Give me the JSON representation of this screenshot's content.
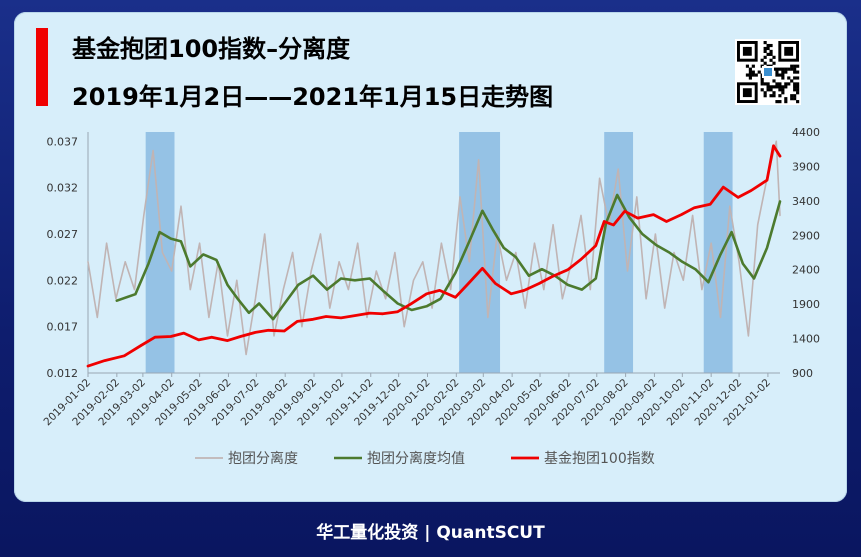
{
  "header": {
    "title_line1": "基金抱团100指数–分离度",
    "title_line2": "2019年1月2日——2021年1月15日走势图"
  },
  "footer": {
    "text": "华工量化投资 | QuantSCUT"
  },
  "colors": {
    "accent_red": "#f00000",
    "separation": "#c0b4b4",
    "separation_mean": "#4c7a2e",
    "index": "#f00000",
    "shade": "#7fb3de"
  },
  "qr": {
    "icon": "qr-code-icon"
  },
  "chart_data": {
    "type": "line",
    "title": "",
    "x_ticks": [
      "2019-01-02",
      "2019-02-02",
      "2019-03-02",
      "2019-04-02",
      "2019-05-02",
      "2019-06-02",
      "2019-07-02",
      "2019-08-02",
      "2019-09-02",
      "2019-10-02",
      "2019-11-02",
      "2019-12-02",
      "2020-01-02",
      "2020-02-02",
      "2020-03-02",
      "2020-04-02",
      "2020-05-02",
      "2020-06-02",
      "2020-07-02",
      "2020-08-02",
      "2020-09-02",
      "2020-10-02",
      "2020-11-02",
      "2020-12-02",
      "2021-01-02"
    ],
    "y_left_ticks": [
      "0.012",
      "0.017",
      "0.022",
      "0.027",
      "0.032",
      "0.037"
    ],
    "y_left_range": [
      0.012,
      0.038
    ],
    "y_right_ticks": [
      "900",
      "1400",
      "1900",
      "2400",
      "2900",
      "3400",
      "3900",
      "4400"
    ],
    "y_right_range": [
      900,
      4400
    ],
    "x_range": [
      "2019-01-02",
      "2021-01-15"
    ],
    "shaded_periods": [
      [
        "2019-03-05",
        "2019-04-05"
      ],
      [
        "2020-02-05",
        "2020-03-20"
      ],
      [
        "2020-07-10",
        "2020-08-10"
      ],
      [
        "2020-10-25",
        "2020-11-25"
      ]
    ],
    "legend_position": "bottom",
    "series": [
      {
        "name": "抱团分离度",
        "axis": "left",
        "x": [
          "2019-01-02",
          "2019-01-12",
          "2019-01-22",
          "2019-02-01",
          "2019-02-11",
          "2019-02-21",
          "2019-03-03",
          "2019-03-13",
          "2019-03-23",
          "2019-04-02",
          "2019-04-12",
          "2019-04-22",
          "2019-05-02",
          "2019-05-12",
          "2019-05-22",
          "2019-06-01",
          "2019-06-11",
          "2019-06-21",
          "2019-07-01",
          "2019-07-11",
          "2019-07-21",
          "2019-07-31",
          "2019-08-10",
          "2019-08-20",
          "2019-08-30",
          "2019-09-09",
          "2019-09-19",
          "2019-09-29",
          "2019-10-09",
          "2019-10-19",
          "2019-10-29",
          "2019-11-08",
          "2019-11-18",
          "2019-11-28",
          "2019-12-08",
          "2019-12-18",
          "2019-12-28",
          "2020-01-07",
          "2020-01-17",
          "2020-01-27",
          "2020-02-06",
          "2020-02-16",
          "2020-02-26",
          "2020-03-07",
          "2020-03-17",
          "2020-03-27",
          "2020-04-06",
          "2020-04-16",
          "2020-04-26",
          "2020-05-06",
          "2020-05-16",
          "2020-05-26",
          "2020-06-05",
          "2020-06-15",
          "2020-06-25",
          "2020-07-05",
          "2020-07-15",
          "2020-07-25",
          "2020-08-04",
          "2020-08-14",
          "2020-08-24",
          "2020-09-03",
          "2020-09-13",
          "2020-09-23",
          "2020-10-03",
          "2020-10-13",
          "2020-10-23",
          "2020-11-02",
          "2020-11-12",
          "2020-11-22",
          "2020-12-02",
          "2020-12-12",
          "2020-12-22",
          "2021-01-01",
          "2021-01-11",
          "2021-01-15"
        ],
        "values": [
          0.024,
          0.018,
          0.026,
          0.02,
          0.024,
          0.021,
          0.029,
          0.036,
          0.025,
          0.023,
          0.03,
          0.021,
          0.026,
          0.018,
          0.024,
          0.016,
          0.022,
          0.014,
          0.02,
          0.027,
          0.016,
          0.021,
          0.025,
          0.017,
          0.023,
          0.027,
          0.019,
          0.024,
          0.021,
          0.026,
          0.018,
          0.023,
          0.02,
          0.025,
          0.017,
          0.022,
          0.024,
          0.019,
          0.026,
          0.021,
          0.031,
          0.024,
          0.035,
          0.018,
          0.027,
          0.022,
          0.025,
          0.019,
          0.026,
          0.021,
          0.028,
          0.02,
          0.024,
          0.029,
          0.021,
          0.033,
          0.028,
          0.034,
          0.023,
          0.031,
          0.02,
          0.027,
          0.019,
          0.025,
          0.022,
          0.029,
          0.021,
          0.026,
          0.018,
          0.03,
          0.024,
          0.016,
          0.028,
          0.033,
          0.037,
          0.029
        ]
      },
      {
        "name": "抱团分离度均值",
        "axis": "left",
        "x": [
          "2019-02-02",
          "2019-02-22",
          "2019-03-08",
          "2019-03-20",
          "2019-04-01",
          "2019-04-12",
          "2019-04-22",
          "2019-05-06",
          "2019-05-20",
          "2019-06-01",
          "2019-06-12",
          "2019-06-24",
          "2019-07-05",
          "2019-07-20",
          "2019-08-02",
          "2019-08-16",
          "2019-09-01",
          "2019-09-16",
          "2019-10-01",
          "2019-10-16",
          "2019-11-01",
          "2019-11-16",
          "2019-12-01",
          "2019-12-16",
          "2020-01-01",
          "2020-01-16",
          "2020-02-01",
          "2020-02-16",
          "2020-03-01",
          "2020-03-12",
          "2020-03-24",
          "2020-04-06",
          "2020-04-20",
          "2020-05-04",
          "2020-05-18",
          "2020-06-01",
          "2020-06-16",
          "2020-07-01",
          "2020-07-12",
          "2020-07-24",
          "2020-08-06",
          "2020-08-20",
          "2020-09-04",
          "2020-09-18",
          "2020-10-02",
          "2020-10-16",
          "2020-10-30",
          "2020-11-12",
          "2020-11-24",
          "2020-12-06",
          "2020-12-18",
          "2021-01-01",
          "2021-01-15"
        ],
        "values": [
          0.0198,
          0.0205,
          0.0238,
          0.0272,
          0.0265,
          0.0262,
          0.0235,
          0.0248,
          0.0242,
          0.0215,
          0.02,
          0.0185,
          0.0195,
          0.0178,
          0.0196,
          0.0215,
          0.0225,
          0.021,
          0.0222,
          0.022,
          0.0222,
          0.0208,
          0.0195,
          0.0188,
          0.0192,
          0.02,
          0.0228,
          0.0262,
          0.0295,
          0.0275,
          0.0255,
          0.0245,
          0.0225,
          0.0232,
          0.0225,
          0.0215,
          0.021,
          0.0222,
          0.0282,
          0.0312,
          0.0288,
          0.027,
          0.0258,
          0.025,
          0.024,
          0.0232,
          0.0218,
          0.0248,
          0.0272,
          0.0238,
          0.0222,
          0.0255,
          0.0305
        ]
      },
      {
        "name": "基金抱团100指数",
        "axis": "right",
        "x": [
          "2019-01-02",
          "2019-01-20",
          "2019-02-10",
          "2019-02-28",
          "2019-03-15",
          "2019-04-01",
          "2019-04-15",
          "2019-05-01",
          "2019-05-15",
          "2019-06-01",
          "2019-06-15",
          "2019-07-01",
          "2019-07-15",
          "2019-08-01",
          "2019-08-15",
          "2019-09-01",
          "2019-09-15",
          "2019-10-01",
          "2019-10-15",
          "2019-11-01",
          "2019-11-15",
          "2019-12-01",
          "2019-12-15",
          "2020-01-01",
          "2020-01-15",
          "2020-02-01",
          "2020-02-15",
          "2020-03-01",
          "2020-03-15",
          "2020-04-01",
          "2020-04-15",
          "2020-05-01",
          "2020-05-15",
          "2020-06-01",
          "2020-06-15",
          "2020-07-01",
          "2020-07-10",
          "2020-07-20",
          "2020-08-01",
          "2020-08-15",
          "2020-09-01",
          "2020-09-15",
          "2020-10-01",
          "2020-10-15",
          "2020-11-01",
          "2020-11-15",
          "2020-12-01",
          "2020-12-15",
          "2021-01-01",
          "2021-01-08",
          "2021-01-15"
        ],
        "values": [
          1000,
          1080,
          1150,
          1300,
          1420,
          1430,
          1480,
          1380,
          1420,
          1370,
          1430,
          1490,
          1520,
          1510,
          1650,
          1680,
          1720,
          1700,
          1730,
          1770,
          1760,
          1790,
          1900,
          2050,
          2100,
          2000,
          2200,
          2420,
          2200,
          2050,
          2100,
          2200,
          2300,
          2400,
          2550,
          2750,
          3100,
          3050,
          3250,
          3150,
          3200,
          3100,
          3200,
          3300,
          3350,
          3600,
          3450,
          3550,
          3700,
          4200,
          4050
        ]
      }
    ]
  }
}
